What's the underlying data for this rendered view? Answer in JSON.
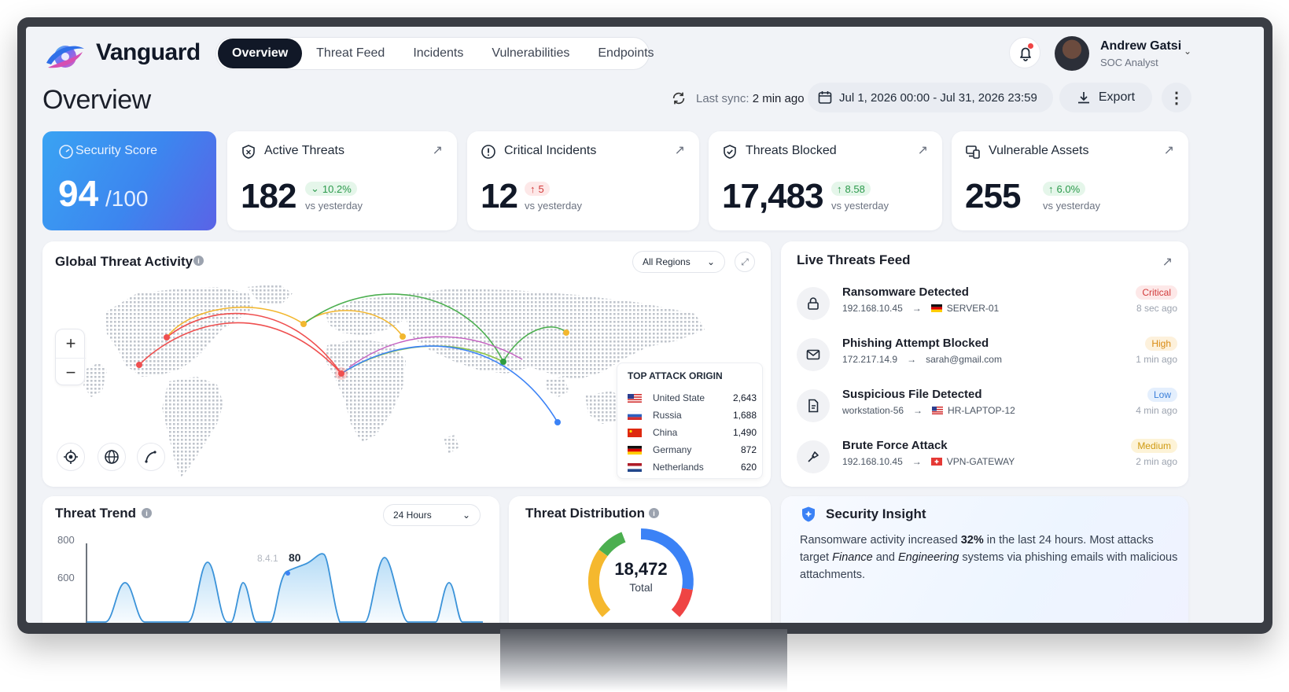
{
  "app": {
    "brand": "Vanguard",
    "colors": {
      "primary": "#111827",
      "accent": "#3c86ef",
      "critical": "#d23b3b",
      "high": "#d98a12",
      "low": "#3b7fd9",
      "medium": "#cf9a12",
      "success": "#2c9a4c"
    }
  },
  "nav": {
    "tabs": [
      "Overview",
      "Threat Feed",
      "Incidents",
      "Vulnerabilities",
      "Endpoints"
    ],
    "active": "Overview"
  },
  "user": {
    "name": "Andrew Gatsi",
    "role": "SOC Analyst",
    "has_notification": true
  },
  "page": {
    "title": "Overview",
    "sync_label": "Last sync:",
    "sync_value": "2 min ago",
    "date_range": "Jul 1, 2026 00:00 - Jul 31, 2026 23:59",
    "export_label": "Export"
  },
  "kpis": {
    "security_score": {
      "label": "Security Score",
      "value": "94",
      "max": "/100"
    },
    "cards": [
      {
        "title": "Active Threats",
        "value": "182",
        "change": "10.2%",
        "direction": "down",
        "tone": "green",
        "sub": "vs yesterday",
        "icon": "shield-alert-icon"
      },
      {
        "title": "Critical Incidents",
        "value": "12",
        "change": "5",
        "direction": "up",
        "tone": "red",
        "sub": "vs yesterday",
        "icon": "alert-circle-icon"
      },
      {
        "title": "Threats Blocked",
        "value": "17,483",
        "change": "8.58",
        "direction": "up",
        "tone": "green",
        "sub": "vs yesterday",
        "icon": "shield-check-icon"
      },
      {
        "title": "Vulnerable Assets",
        "value": "255",
        "change": "6.0%",
        "direction": "up",
        "tone": "green",
        "sub": "vs yesterday",
        "icon": "devices-icon"
      }
    ]
  },
  "map": {
    "title": "Global Threat Activity",
    "region_select": "All Regions",
    "top_origin": {
      "title": "TOP ATTACK ORIGIN",
      "rows": [
        {
          "country": "United State",
          "count": "2,643",
          "flag": "us"
        },
        {
          "country": "Russia",
          "count": "1,688",
          "flag": "ru"
        },
        {
          "country": "China",
          "count": "1,490",
          "flag": "cn"
        },
        {
          "country": "Germany",
          "count": "872",
          "flag": "de"
        },
        {
          "country": "Netherlands",
          "count": "620",
          "flag": "nl"
        }
      ]
    }
  },
  "feed": {
    "title": "Live Threats Feed",
    "items": [
      {
        "title": "Ransomware Detected",
        "source": "192.168.10.45",
        "target": "SERVER-01",
        "target_flag": "de",
        "severity": "Critical",
        "time": "8 sec ago",
        "icon": "lock-icon"
      },
      {
        "title": "Phishing Attempt Blocked",
        "source": "172.217.14.9",
        "target": "sarah@gmail.com",
        "target_flag": "",
        "severity": "High",
        "time": "1 min ago",
        "icon": "mail-icon"
      },
      {
        "title": "Suspicious File Detected",
        "source": "workstation-56",
        "target": "HR-LAPTOP-12",
        "target_flag": "us",
        "severity": "Low",
        "time": "4 min ago",
        "icon": "file-icon"
      },
      {
        "title": "Brute Force Attack",
        "source": "192.168.10.45",
        "target": "VPN-GATEWAY",
        "target_flag": "ch",
        "severity": "Medium",
        "time": "2 min ago",
        "icon": "key-icon"
      }
    ]
  },
  "trend": {
    "title": "Threat Trend",
    "range_select": "24 Hours",
    "y_ticks": [
      "800",
      "600"
    ],
    "tooltip_value": "8.4.1",
    "peak_label": "80"
  },
  "distribution": {
    "title": "Threat Distribution",
    "total_value": "18,472",
    "total_label": "Total"
  },
  "insight": {
    "title": "Security Insight",
    "t1": "Ransomware activity increased ",
    "pct": "32%",
    "t2": " in the last 24 hours. Most attacks target ",
    "d1": "Finance",
    "t3": " and ",
    "d2": "Engineering",
    "t4": " systems via phishing emails with malicious attachments."
  }
}
